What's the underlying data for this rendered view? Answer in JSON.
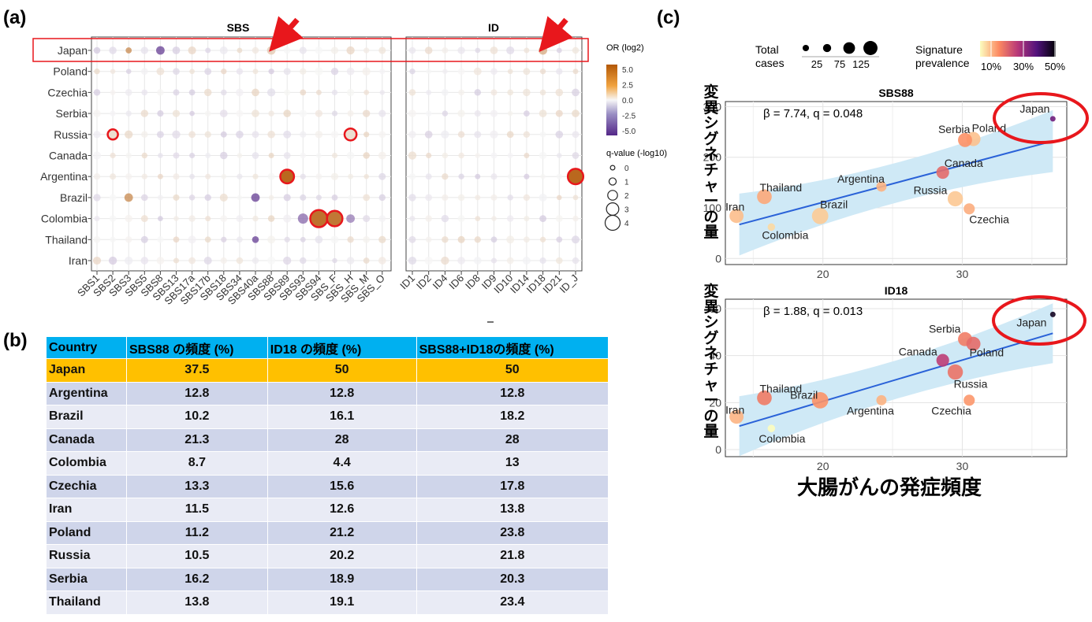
{
  "panel_labels": {
    "a": "(a)",
    "b": "(b)",
    "c": "(c)"
  },
  "colors": {
    "highlight_red": "#e8171c",
    "table_header": "#00b0f0",
    "table_highlight": "#ffc000",
    "ci_band": "#cfe9f6",
    "fit_line": "#2a62d8"
  },
  "heatmap": {
    "countries": [
      "Japan",
      "Poland",
      "Czechia",
      "Serbia",
      "Russia",
      "Canada",
      "Argentina",
      "Brazil",
      "Colombia",
      "Thailand",
      "Iran"
    ],
    "sbs_title": "SBS",
    "id_title": "ID",
    "sbs_columns": [
      "SBS1",
      "SBS2",
      "SBS3",
      "SBS5",
      "SBS8",
      "SBS13",
      "SBS17a",
      "SBS17b",
      "SBS18",
      "SBS34",
      "SBS40a",
      "SBS88",
      "SBS89",
      "SBS93",
      "SBS94",
      "SBS_F",
      "SBS_H",
      "SBS_M",
      "SBS_O"
    ],
    "id_columns": [
      "ID1",
      "ID2",
      "ID4",
      "ID6",
      "ID8",
      "ID9",
      "ID10",
      "ID14",
      "ID18",
      "ID21",
      "ID_J"
    ],
    "legend_or_title": "OR (log2)",
    "legend_or_ticks": [
      "5.0",
      "2.5",
      "0.0",
      "-2.5",
      "-5.0"
    ],
    "legend_q_title": "q-value (-log10)",
    "legend_q_ticks": [
      "0",
      "1",
      "2",
      "3",
      "4"
    ],
    "significant_cells": [
      {
        "panel": "SBS",
        "country": "Russia",
        "column": "SBS2",
        "or_log2": 0.8,
        "q_log10": 1.5
      },
      {
        "panel": "SBS",
        "country": "Russia",
        "column": "SBS_H",
        "or_log2": 0.8,
        "q_log10": 2.0
      },
      {
        "panel": "SBS",
        "country": "Argentina",
        "column": "SBS89",
        "or_log2": 4.5,
        "q_log10": 2.5
      },
      {
        "panel": "SBS",
        "country": "Colombia",
        "column": "SBS94",
        "or_log2": 4.2,
        "q_log10": 3.5
      },
      {
        "panel": "SBS",
        "country": "Colombia",
        "column": "SBS_F",
        "or_log2": 4.0,
        "q_log10": 3.0
      },
      {
        "panel": "ID",
        "country": "Argentina",
        "column": "ID_J",
        "or_log2": 4.5,
        "q_log10": 3.0
      }
    ],
    "other_cells": [
      {
        "panel": "SBS",
        "country": "Japan",
        "column": "SBS88",
        "or_log2": 1.5,
        "q_log10": 1.0
      },
      {
        "panel": "SBS",
        "country": "Japan",
        "column": "SBS3",
        "or_log2": 3.5,
        "q_log10": 0.3
      },
      {
        "panel": "SBS",
        "country": "Japan",
        "column": "SBS8",
        "or_log2": -4.5,
        "q_log10": 1.0
      },
      {
        "panel": "ID",
        "country": "Japan",
        "column": "ID18",
        "or_log2": 2.5,
        "q_log10": 1.0
      },
      {
        "panel": "SBS",
        "country": "Brazil",
        "column": "SBS3",
        "or_log2": 3.5,
        "q_log10": 1.0
      },
      {
        "panel": "SBS",
        "country": "Brazil",
        "column": "SBS40a",
        "or_log2": -4.5,
        "q_log10": 1.0
      },
      {
        "panel": "SBS",
        "country": "Thailand",
        "column": "SBS40a",
        "or_log2": -4.5,
        "q_log10": 0.5
      },
      {
        "panel": "SBS",
        "country": "Colombia",
        "column": "SBS93",
        "or_log2": -3.5,
        "q_log10": 1.5
      },
      {
        "panel": "SBS",
        "country": "Colombia",
        "column": "SBS_H",
        "or_log2": -3.0,
        "q_log10": 1.0
      }
    ]
  },
  "table": {
    "headers": [
      "Country",
      "SBS88 の頻度 (%)",
      "ID18 の頻度 (%)",
      "SBS88+ID18の頻度 (%)"
    ],
    "rows": [
      [
        "Japan",
        "37.5",
        "50",
        "50"
      ],
      [
        "Argentina",
        "12.8",
        "12.8",
        "12.8"
      ],
      [
        "Brazil",
        "10.2",
        "16.1",
        "18.2"
      ],
      [
        "Canada",
        "21.3",
        "28",
        "28"
      ],
      [
        "Colombia",
        "8.7",
        "4.4",
        "13"
      ],
      [
        "Czechia",
        "13.3",
        "15.6",
        "17.8"
      ],
      [
        "Iran",
        "11.5",
        "12.6",
        "13.8"
      ],
      [
        "Poland",
        "11.2",
        "21.2",
        "23.8"
      ],
      [
        "Russia",
        "10.5",
        "20.2",
        "21.8"
      ],
      [
        "Serbia",
        "16.2",
        "18.9",
        "20.3"
      ],
      [
        "Thailand",
        "13.8",
        "19.1",
        "23.4"
      ]
    ]
  },
  "chart_data": [
    {
      "type": "scatter",
      "title": "SBS88",
      "annotation": "β = 7.74, q = 0.048",
      "xlabel": "大腸がんの発症頻度",
      "ylabel": "変異シグネチャーの量",
      "xlim": [
        13,
        37.5
      ],
      "ylim": [
        -12,
        310
      ],
      "xticks": [
        20,
        30
      ],
      "yticks": [
        0,
        100,
        200,
        300
      ],
      "fit": {
        "x": [
          14,
          36.5
        ],
        "y": [
          67,
          232
        ]
      },
      "points": [
        {
          "label": "Japan",
          "x": 36.5,
          "y": 276,
          "total_cases": 10,
          "prevalence": 37.5
        },
        {
          "label": "Poland",
          "x": 30.8,
          "y": 236,
          "total_cases": 80,
          "prevalence": 11.2
        },
        {
          "label": "Serbia",
          "x": 30.2,
          "y": 234,
          "total_cases": 80,
          "prevalence": 16.2
        },
        {
          "label": "Canada",
          "x": 28.6,
          "y": 170,
          "total_cases": 60,
          "prevalence": 21.3
        },
        {
          "label": "Argentina",
          "x": 24.2,
          "y": 142,
          "total_cases": 30,
          "prevalence": 12.8
        },
        {
          "label": "Russia",
          "x": 29.5,
          "y": 118,
          "total_cases": 100,
          "prevalence": 10.5
        },
        {
          "label": "Czechia",
          "x": 30.5,
          "y": 98,
          "total_cases": 40,
          "prevalence": 13.3
        },
        {
          "label": "Thailand",
          "x": 15.8,
          "y": 122,
          "total_cases": 90,
          "prevalence": 13.8
        },
        {
          "label": "Iran",
          "x": 13.8,
          "y": 84,
          "total_cases": 80,
          "prevalence": 11.5
        },
        {
          "label": "Brazil",
          "x": 19.8,
          "y": 84,
          "total_cases": 120,
          "prevalence": 10.2
        },
        {
          "label": "Colombia",
          "x": 16.3,
          "y": 62,
          "total_cases": 10,
          "prevalence": 8.7
        }
      ]
    },
    {
      "type": "scatter",
      "title": "ID18",
      "annotation": "β = 1.88, q = 0.013",
      "xlabel": "大腸がんの発症頻度",
      "ylabel": "変異シグネチャーの量",
      "xlim": [
        13,
        37.5
      ],
      "ylim": [
        -3,
        64
      ],
      "xticks": [
        20,
        30
      ],
      "yticks": [
        0,
        20,
        40,
        60
      ],
      "fit": {
        "x": [
          14,
          36.5
        ],
        "y": [
          10,
          49.5
        ]
      },
      "points": [
        {
          "label": "Japan",
          "x": 36.5,
          "y": 57.5,
          "total_cases": 10,
          "prevalence": 50
        },
        {
          "label": "Serbia",
          "x": 30.2,
          "y": 47,
          "total_cases": 80,
          "prevalence": 18.9
        },
        {
          "label": "Poland",
          "x": 30.8,
          "y": 45,
          "total_cases": 80,
          "prevalence": 21.2
        },
        {
          "label": "Canada",
          "x": 28.6,
          "y": 38,
          "total_cases": 60,
          "prevalence": 28
        },
        {
          "label": "Russia",
          "x": 29.5,
          "y": 33,
          "total_cases": 100,
          "prevalence": 20.2
        },
        {
          "label": "Thailand",
          "x": 15.8,
          "y": 22,
          "total_cases": 90,
          "prevalence": 19.1
        },
        {
          "label": "Brazil",
          "x": 19.8,
          "y": 21,
          "total_cases": 120,
          "prevalence": 16.1
        },
        {
          "label": "Argentina",
          "x": 24.2,
          "y": 21,
          "total_cases": 30,
          "prevalence": 12.8
        },
        {
          "label": "Czechia",
          "x": 30.5,
          "y": 21,
          "total_cases": 40,
          "prevalence": 15.6
        },
        {
          "label": "Iran",
          "x": 13.8,
          "y": 14,
          "total_cases": 80,
          "prevalence": 12.6
        },
        {
          "label": "Colombia",
          "x": 16.3,
          "y": 9,
          "total_cases": 10,
          "prevalence": 4.4
        }
      ]
    }
  ],
  "legend_c": {
    "total_cases_title": "Total\ncases",
    "total_cases_ticks": [
      "25",
      "75",
      "125"
    ],
    "prevalence_title": "Signature\nprevalence",
    "prevalence_ticks": [
      "10%",
      "30%",
      "50%"
    ]
  }
}
